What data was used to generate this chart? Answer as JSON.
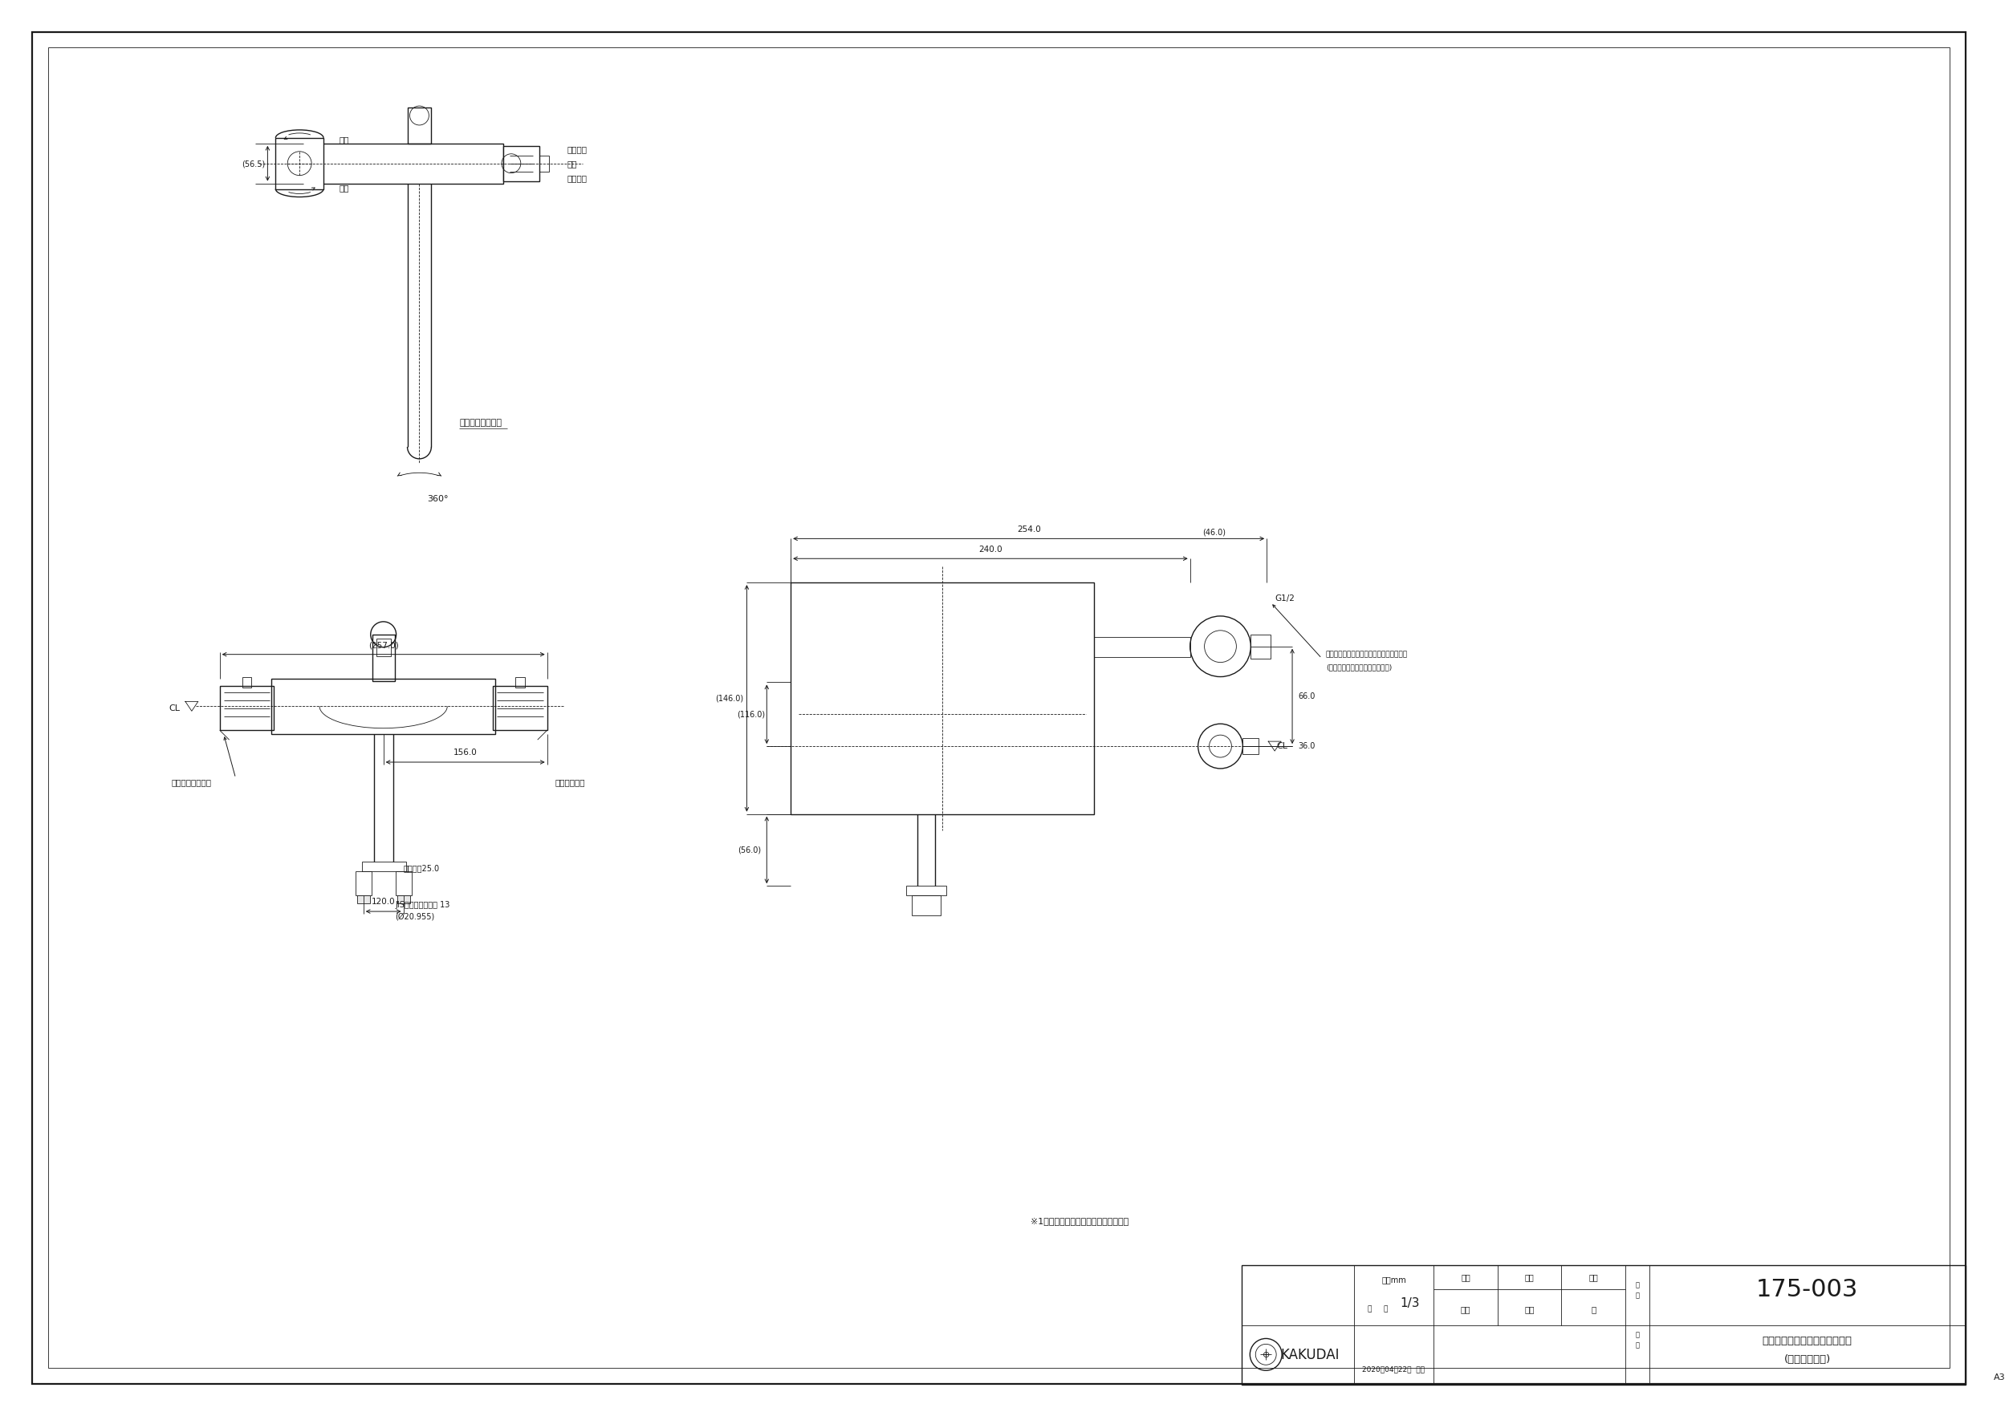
{
  "bg_color": "#ffffff",
  "lc": "#1a1a1a",
  "note1": "※1　（　）内寸法は参考寸法である。",
  "label_high": "高温",
  "label_low": "低温",
  "label_shower_side": "シャワ剤",
  "label_water_stop": "止水",
  "label_pipe_side": "パイプ剤",
  "label_dim_56": "(56.5)",
  "label_spout": "スパウト回転觓度",
  "label_360": "360°",
  "label_temp": "温度調節ハンドル",
  "label_stop_handle": "切替ハンドル",
  "label_cl": "CL",
  "dim_257": "(257.0)",
  "dim_156": "156.0",
  "dim_120": "120.0",
  "dim_hex": "六觓対辺25.0",
  "dim_jis": "JIS給水栃取付ねじ 13",
  "dim_jis2": "(Ø20.955)",
  "dim_254": "254.0",
  "dim_240": "240.0",
  "dim_46": "(46.0)",
  "dim_146": "(146.0)",
  "dim_116": "(116.0)",
  "dim_66": "66.0",
  "dim_36": "36.0",
  "dim_56b": "(56.0)",
  "label_g12": "G1/2",
  "label_shower_note1": "この部分にシャワーセットを取付けます。",
  "label_shower_note2": "(シャワーセットは茶付図面参瓧)",
  "tb_unit": "単位mm",
  "tb_scale": "1/3",
  "tb_seizu": "製図",
  "tb_kenzo": "検図",
  "tb_syonin": "承認",
  "tb_hinban": "品番",
  "tb_hinmei": "品名",
  "tb_maker1": "岩藤",
  "tb_maker2": "寡川",
  "tb_maker3": "祝",
  "tb_date": "2020年04月22日  作成",
  "tb_num": "175-003",
  "tb_name1": "サーモスタットシャワー混合栓",
  "tb_name2": "(デッキタイプ)",
  "tb_company": "KAKUDAI",
  "label_a3": "A3"
}
